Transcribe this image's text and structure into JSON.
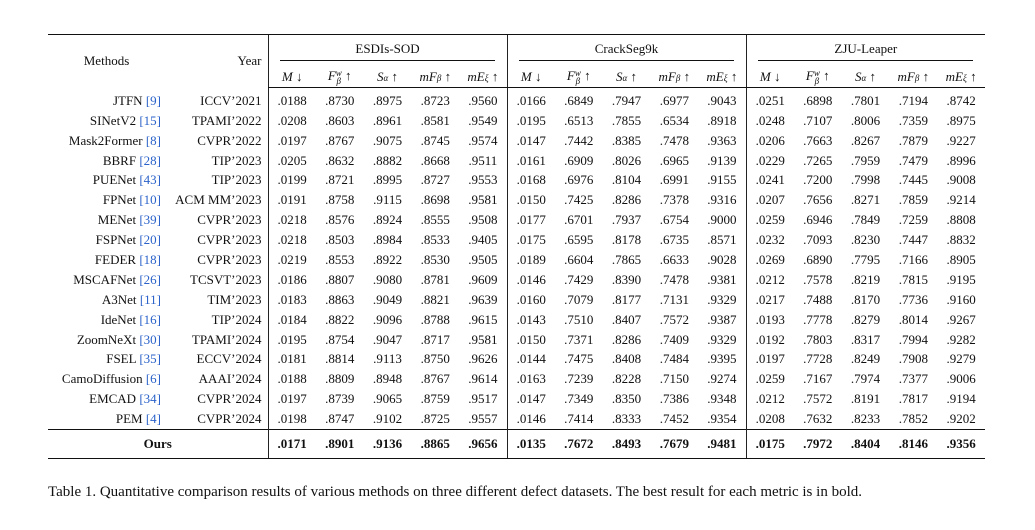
{
  "table": {
    "header": {
      "methods": "Methods",
      "year": "Year",
      "groups": [
        "ESDIs-SOD",
        "CrackSeg9k",
        "ZJU-Leaper"
      ],
      "metrics": [
        {
          "base": "M",
          "arrow": "↓"
        },
        {
          "base": "F",
          "sup": "w",
          "sub": "β",
          "arrow": "↑"
        },
        {
          "base": "S",
          "sub": "α",
          "arrow": "↑"
        },
        {
          "base": "mF",
          "sub": "β",
          "arrow": "↑"
        },
        {
          "base": "mE",
          "sub": "ξ",
          "arrow": "↑"
        }
      ]
    },
    "rows": [
      {
        "name": "JTFN",
        "cite": "[9]",
        "year": "ICCV’2021",
        "values": [
          ".0188",
          ".8730",
          ".8975",
          ".8723",
          ".9560",
          ".0166",
          ".6849",
          ".7947",
          ".6977",
          ".9043",
          ".0251",
          ".6898",
          ".7801",
          ".7194",
          ".8742"
        ]
      },
      {
        "name": "SINetV2",
        "cite": "[15]",
        "year": "TPAMI’2022",
        "values": [
          ".0208",
          ".8603",
          ".8961",
          ".8581",
          ".9549",
          ".0195",
          ".6513",
          ".7855",
          ".6534",
          ".8918",
          ".0248",
          ".7107",
          ".8006",
          ".7359",
          ".8975"
        ]
      },
      {
        "name": "Mask2Former",
        "cite": "[8]",
        "year": "CVPR’2022",
        "values": [
          ".0197",
          ".8767",
          ".9075",
          ".8745",
          ".9574",
          ".0147",
          ".7442",
          ".8385",
          ".7478",
          ".9363",
          ".0206",
          ".7663",
          ".8267",
          ".7879",
          ".9227"
        ]
      },
      {
        "name": "BBRF",
        "cite": "[28]",
        "year": "TIP’2023",
        "values": [
          ".0205",
          ".8632",
          ".8882",
          ".8668",
          ".9511",
          ".0161",
          ".6909",
          ".8026",
          ".6965",
          ".9139",
          ".0229",
          ".7265",
          ".7959",
          ".7479",
          ".8996"
        ]
      },
      {
        "name": "PUENet",
        "cite": "[43]",
        "year": "TIP’2023",
        "values": [
          ".0199",
          ".8721",
          ".8995",
          ".8727",
          ".9553",
          ".0168",
          ".6976",
          ".8104",
          ".6991",
          ".9155",
          ".0241",
          ".7200",
          ".7998",
          ".7445",
          ".9008"
        ]
      },
      {
        "name": "FPNet",
        "cite": "[10]",
        "year": "ACM MM’2023",
        "values": [
          ".0191",
          ".8758",
          ".9115",
          ".8698",
          ".9581",
          ".0150",
          ".7425",
          ".8286",
          ".7378",
          ".9316",
          ".0207",
          ".7656",
          ".8271",
          ".7859",
          ".9214"
        ]
      },
      {
        "name": "MENet",
        "cite": "[39]",
        "year": "CVPR’2023",
        "values": [
          ".0218",
          ".8576",
          ".8924",
          ".8555",
          ".9508",
          ".0177",
          ".6701",
          ".7937",
          ".6754",
          ".9000",
          ".0259",
          ".6946",
          ".7849",
          ".7259",
          ".8808"
        ]
      },
      {
        "name": "FSPNet",
        "cite": "[20]",
        "year": "CVPR’2023",
        "values": [
          ".0218",
          ".8503",
          ".8984",
          ".8533",
          ".9405",
          ".0175",
          ".6595",
          ".8178",
          ".6735",
          ".8571",
          ".0232",
          ".7093",
          ".8230",
          ".7447",
          ".8832"
        ]
      },
      {
        "name": "FEDER",
        "cite": "[18]",
        "year": "CVPR’2023",
        "values": [
          ".0219",
          ".8553",
          ".8922",
          ".8530",
          ".9505",
          ".0189",
          ".6604",
          ".7865",
          ".6633",
          ".9028",
          ".0269",
          ".6890",
          ".7795",
          ".7166",
          ".8905"
        ]
      },
      {
        "name": "MSCAFNet",
        "cite": "[26]",
        "year": "TCSVT’2023",
        "values": [
          ".0186",
          ".8807",
          ".9080",
          ".8781",
          ".9609",
          ".0146",
          ".7429",
          ".8390",
          ".7478",
          ".9381",
          ".0212",
          ".7578",
          ".8219",
          ".7815",
          ".9195"
        ]
      },
      {
        "name": "A3Net",
        "cite": "[11]",
        "year": "TIM’2023",
        "values": [
          ".0183",
          ".8863",
          ".9049",
          ".8821",
          ".9639",
          ".0160",
          ".7079",
          ".8177",
          ".7131",
          ".9329",
          ".0217",
          ".7488",
          ".8170",
          ".7736",
          ".9160"
        ]
      },
      {
        "name": "IdeNet",
        "cite": "[16]",
        "year": "TIP’2024",
        "values": [
          ".0184",
          ".8822",
          ".9096",
          ".8788",
          ".9615",
          ".0143",
          ".7510",
          ".8407",
          ".7572",
          ".9387",
          ".0193",
          ".7778",
          ".8279",
          ".8014",
          ".9267"
        ]
      },
      {
        "name": "ZoomNeXt",
        "cite": "[30]",
        "year": "TPAMI’2024",
        "values": [
          ".0195",
          ".8754",
          ".9047",
          ".8717",
          ".9581",
          ".0150",
          ".7371",
          ".8286",
          ".7409",
          ".9329",
          ".0192",
          ".7803",
          ".8317",
          ".7994",
          ".9282"
        ]
      },
      {
        "name": "FSEL",
        "cite": "[35]",
        "year": "ECCV’2024",
        "values": [
          ".0181",
          ".8814",
          ".9113",
          ".8750",
          ".9626",
          ".0144",
          ".7475",
          ".8408",
          ".7484",
          ".9395",
          ".0197",
          ".7728",
          ".8249",
          ".7908",
          ".9279"
        ]
      },
      {
        "name": "CamoDiffusion",
        "cite": "[6]",
        "year": "AAAI’2024",
        "values": [
          ".0188",
          ".8809",
          ".8948",
          ".8767",
          ".9614",
          ".0163",
          ".7239",
          ".8228",
          ".7150",
          ".9274",
          ".0259",
          ".7167",
          ".7974",
          ".7377",
          ".9006"
        ]
      },
      {
        "name": "EMCAD",
        "cite": "[34]",
        "year": "CVPR’2024",
        "values": [
          ".0197",
          ".8739",
          ".9065",
          ".8759",
          ".9517",
          ".0147",
          ".7349",
          ".8350",
          ".7386",
          ".9348",
          ".0212",
          ".7572",
          ".8191",
          ".7817",
          ".9194"
        ]
      },
      {
        "name": "PEM",
        "cite": "[4]",
        "year": "CVPR’2024",
        "values": [
          ".0198",
          ".8747",
          ".9102",
          ".8725",
          ".9557",
          ".0146",
          ".7414",
          ".8333",
          ".7452",
          ".9354",
          ".0208",
          ".7632",
          ".8233",
          ".7852",
          ".9202"
        ]
      }
    ],
    "ours": {
      "name": "Ours",
      "values": [
        ".0171",
        ".8901",
        ".9136",
        ".8865",
        ".9656",
        ".0135",
        ".7672",
        ".8493",
        ".7679",
        ".9481",
        ".0175",
        ".7972",
        ".8404",
        ".8146",
        ".9356"
      ]
    }
  },
  "caption": "Table 1. Quantitative comparison results of various methods on three different defect datasets. The best result for each metric is in bold."
}
